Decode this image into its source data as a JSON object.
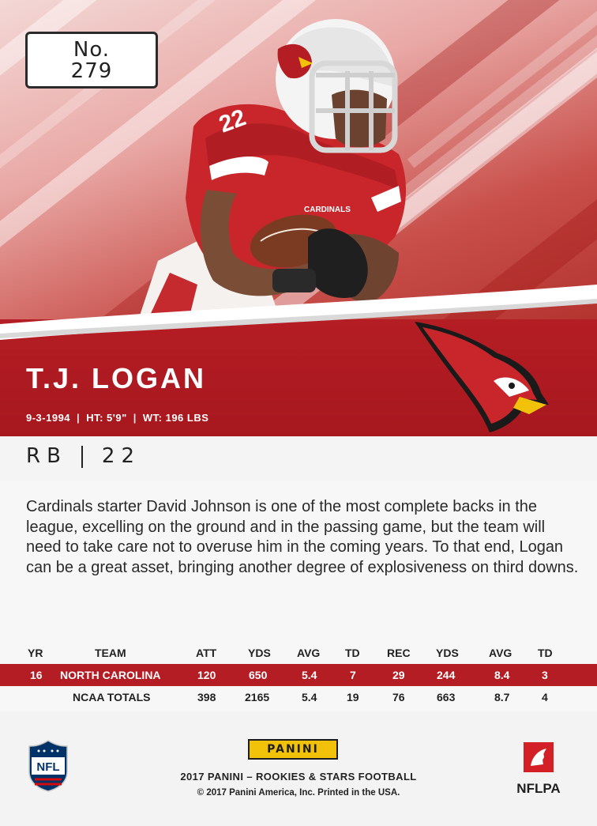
{
  "card": {
    "number_label": "No.",
    "number": "279",
    "player_name": "T.J. LOGAN",
    "birthdate": "9-3-1994",
    "height": "HT: 5'9\"",
    "weight": "WT: 196 LBS",
    "position": "RB",
    "jersey": "22",
    "jersey_photo_number": "22",
    "jersey_team_text": "CARDINALS",
    "bio_text": "Cardinals starter David Johnson is one of the most complete backs in the league, excelling on the ground and in the passing game, but the team will need to take care not to overuse him in the coming years. To that end, Logan can be a great asset, bringing another degree of explosiveness on third downs."
  },
  "stats": {
    "headers": [
      "YR",
      "TEAM",
      "ATT",
      "YDS",
      "AVG",
      "TD",
      "REC",
      "YDS",
      "AVG",
      "TD"
    ],
    "rows": [
      [
        "16",
        "NORTH CAROLINA",
        "120",
        "650",
        "5.4",
        "7",
        "29",
        "244",
        "8.4",
        "3"
      ],
      [
        "",
        "NCAA TOTALS",
        "398",
        "2165",
        "5.4",
        "19",
        "76",
        "663",
        "8.7",
        "4"
      ]
    ]
  },
  "footer": {
    "brand_logo": "PANINI",
    "line1": "2017 PANINI – ROOKIES & STARS FOOTBALL",
    "line2": "© 2017 Panini America, Inc. Printed in the USA.",
    "nfl_logo_text": "NFL",
    "nflpa_logo_text": "NFLPA"
  },
  "colors": {
    "cardinal_red": "#b51d24",
    "panini_yellow": "#f2c20b",
    "nfl_blue": "#013369"
  }
}
